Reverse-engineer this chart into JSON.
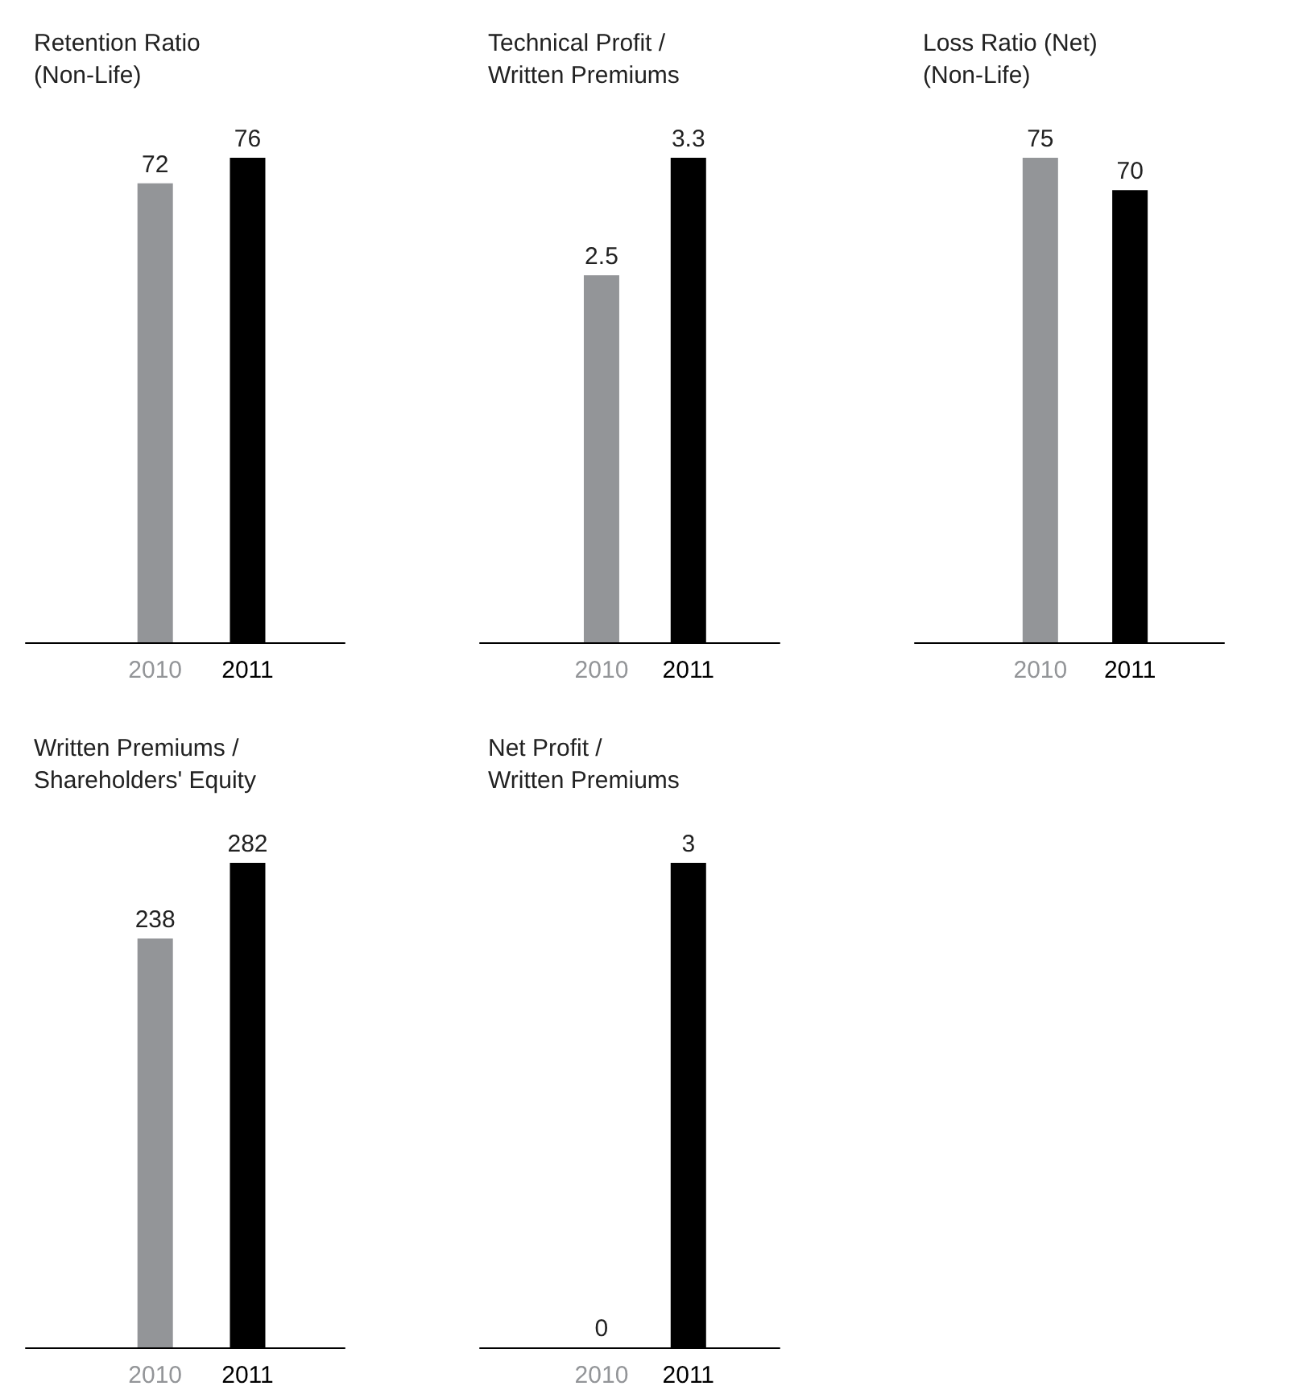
{
  "chart_data": [
    {
      "type": "bar",
      "title": "Retention Ratio\n(Non-Life)",
      "categories": [
        "2010",
        "2011"
      ],
      "values": [
        72,
        76
      ],
      "colors": [
        "#939598",
        "#000000"
      ],
      "data_labels": true
    },
    {
      "type": "bar",
      "title": "Technical Profit /\nWritten Premiums",
      "categories": [
        "2010",
        "2011"
      ],
      "values": [
        2.5,
        3.3
      ],
      "colors": [
        "#939598",
        "#000000"
      ],
      "data_labels": true
    },
    {
      "type": "bar",
      "title": "Loss Ratio (Net)\n(Non-Life)",
      "categories": [
        "2010",
        "2011"
      ],
      "values": [
        75,
        70
      ],
      "colors": [
        "#939598",
        "#000000"
      ],
      "data_labels": true
    },
    {
      "type": "bar",
      "title": "Written Premiums /\nShareholders' Equity",
      "categories": [
        "2010",
        "2011"
      ],
      "values": [
        238,
        282
      ],
      "colors": [
        "#939598",
        "#000000"
      ],
      "data_labels": true
    },
    {
      "type": "bar",
      "title": "Net Profit /\nWritten Premiums",
      "categories": [
        "2010",
        "2011"
      ],
      "values": [
        0,
        3
      ],
      "colors": [
        "#939598",
        "#000000"
      ],
      "data_labels": true
    }
  ]
}
